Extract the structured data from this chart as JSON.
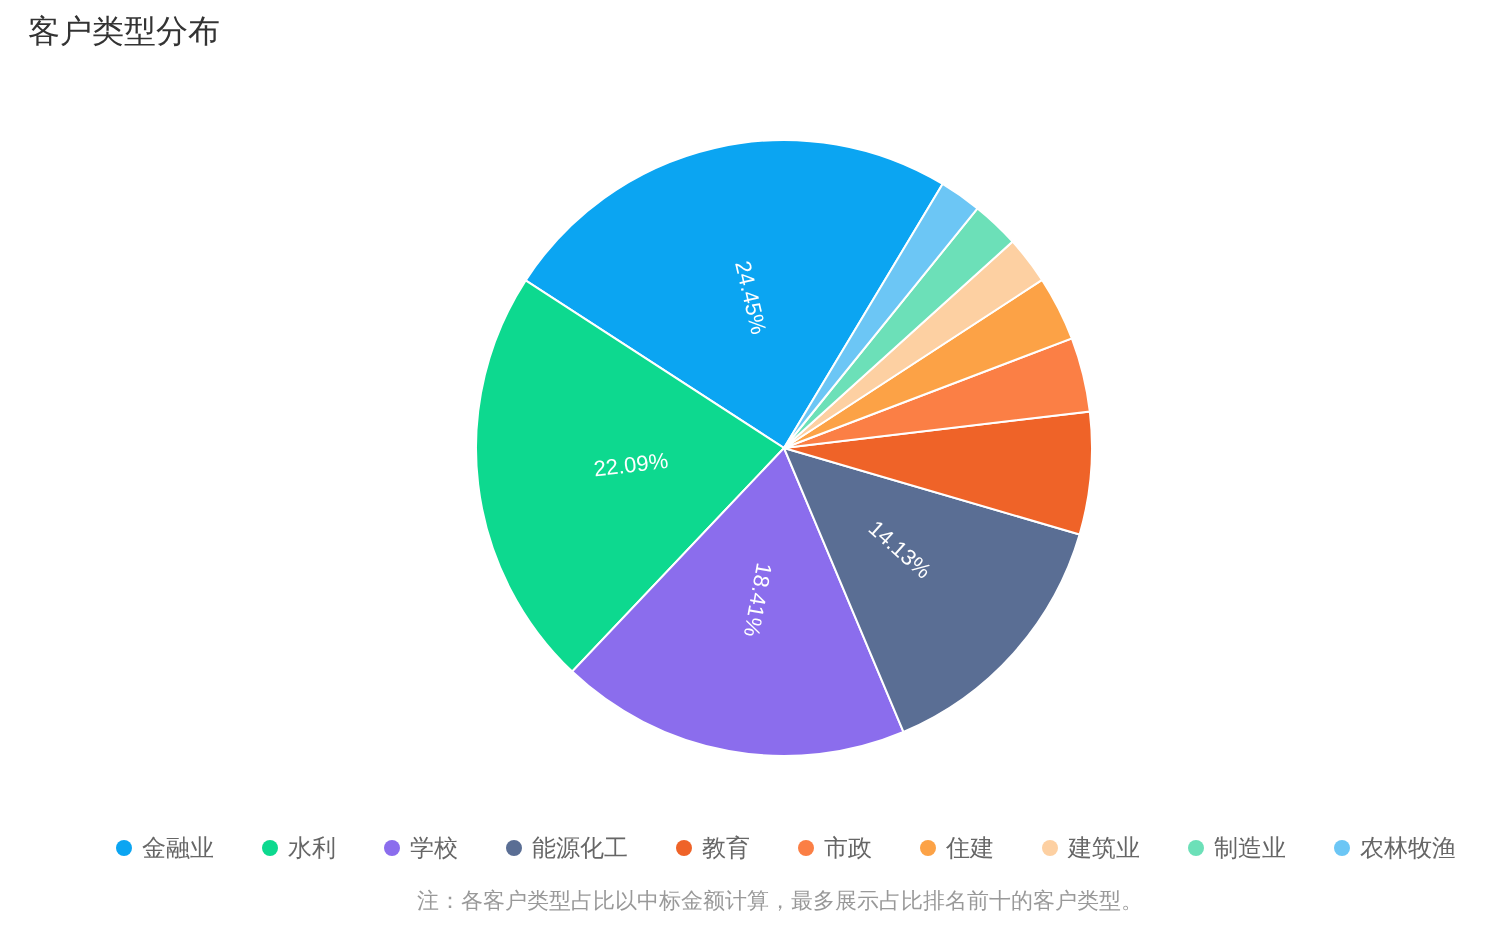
{
  "chart_data": {
    "type": "pie",
    "title": "客户类型分布",
    "categories": [
      "金融业",
      "水利",
      "学校",
      "能源化工",
      "教育",
      "市政",
      "住建",
      "建筑业",
      "制造业",
      "农林牧渔"
    ],
    "values": [
      24.45,
      22.09,
      18.41,
      14.13,
      6.42,
      3.9,
      3.4,
      2.5,
      2.5,
      2.2
    ],
    "colors": [
      "#0ba5f2",
      "#0dd98f",
      "#8b6ded",
      "#5a6e94",
      "#ef6328",
      "#fb7f45",
      "#fca246",
      "#fdd0a2",
      "#6ce0b8",
      "#6cc6f5"
    ],
    "value_labels": [
      "24.45%",
      "22.09%",
      "18.41%",
      "14.13%",
      null,
      null,
      null,
      null,
      null,
      null
    ],
    "legend": "bottom",
    "annotations": [
      "注：各客户类型占比以中标金额计算，最多展示占比排名前十的客户类型。"
    ]
  }
}
